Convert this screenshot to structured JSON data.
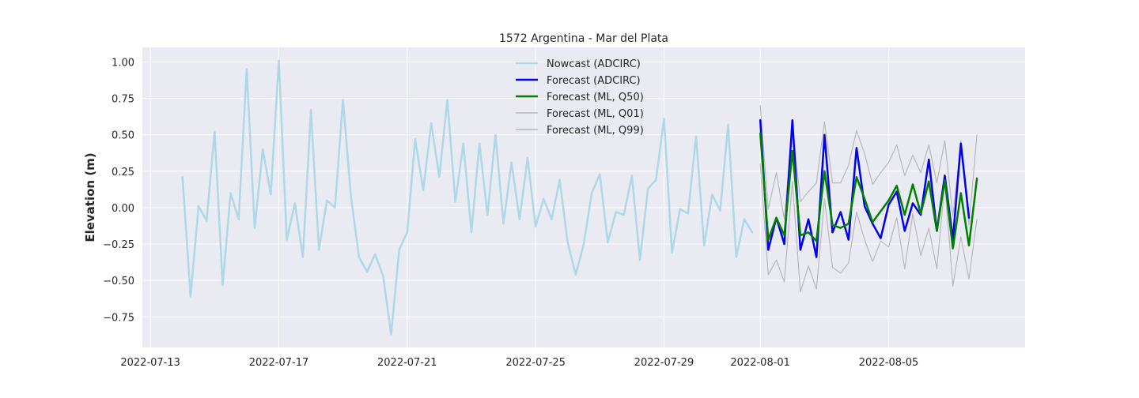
{
  "chart_data": {
    "type": "line",
    "title": "1572 Argentina - Mar del Plata",
    "xlabel": "",
    "ylabel": "Elevation (m)",
    "xlim": [
      "2022-07-12T18:00",
      "2022-08-09T06:00"
    ],
    "ylim": [
      -0.96,
      1.1
    ],
    "x_ticks": [
      "2022-07-13",
      "2022-07-17",
      "2022-07-21",
      "2022-07-25",
      "2022-07-29",
      "2022-08-01",
      "2022-08-05"
    ],
    "y_ticks": [
      -0.75,
      -0.5,
      -0.25,
      0.0,
      0.25,
      0.5,
      0.75,
      1.0
    ],
    "y_tick_labels": [
      "−0.75",
      "−0.50",
      "−0.25",
      "0.00",
      "0.25",
      "0.50",
      "0.75",
      "1.00"
    ],
    "grid": true,
    "legend_position": "top-center",
    "series": [
      {
        "name": "Nowcast (ADCIRC)",
        "color": "#add8e6",
        "width": 2.5,
        "x": [
          "2022-07-14T00:00",
          "2022-07-14T06:00",
          "2022-07-14T12:00",
          "2022-07-14T18:00",
          "2022-07-15T00:00",
          "2022-07-15T06:00",
          "2022-07-15T12:00",
          "2022-07-15T18:00",
          "2022-07-16T00:00",
          "2022-07-16T06:00",
          "2022-07-16T12:00",
          "2022-07-16T18:00",
          "2022-07-17T00:00",
          "2022-07-17T06:00",
          "2022-07-17T12:00",
          "2022-07-17T18:00",
          "2022-07-18T00:00",
          "2022-07-18T06:00",
          "2022-07-18T12:00",
          "2022-07-18T18:00",
          "2022-07-19T00:00",
          "2022-07-19T06:00",
          "2022-07-19T12:00",
          "2022-07-19T18:00",
          "2022-07-20T00:00",
          "2022-07-20T06:00",
          "2022-07-20T12:00",
          "2022-07-20T18:00",
          "2022-07-21T00:00",
          "2022-07-21T06:00",
          "2022-07-21T12:00",
          "2022-07-21T18:00",
          "2022-07-22T00:00",
          "2022-07-22T06:00",
          "2022-07-22T12:00",
          "2022-07-22T18:00",
          "2022-07-23T00:00",
          "2022-07-23T06:00",
          "2022-07-23T12:00",
          "2022-07-23T18:00",
          "2022-07-24T00:00",
          "2022-07-24T06:00",
          "2022-07-24T12:00",
          "2022-07-24T18:00",
          "2022-07-25T00:00",
          "2022-07-25T06:00",
          "2022-07-25T12:00",
          "2022-07-25T18:00",
          "2022-07-26T00:00",
          "2022-07-26T06:00",
          "2022-07-26T12:00",
          "2022-07-26T18:00",
          "2022-07-27T00:00",
          "2022-07-27T06:00",
          "2022-07-27T12:00",
          "2022-07-27T18:00",
          "2022-07-28T00:00",
          "2022-07-28T06:00",
          "2022-07-28T12:00",
          "2022-07-28T18:00",
          "2022-07-29T00:00",
          "2022-07-29T06:00",
          "2022-07-29T12:00",
          "2022-07-29T18:00",
          "2022-07-30T00:00",
          "2022-07-30T06:00",
          "2022-07-30T12:00",
          "2022-07-30T18:00",
          "2022-07-31T00:00",
          "2022-07-31T06:00",
          "2022-07-31T12:00",
          "2022-07-31T18:00"
        ],
        "y": [
          0.21,
          -0.61,
          0.01,
          -0.09,
          0.52,
          -0.53,
          0.1,
          -0.08,
          0.95,
          -0.14,
          0.4,
          0.09,
          1.01,
          -0.22,
          0.03,
          -0.34,
          0.67,
          -0.29,
          0.05,
          0.0,
          0.74,
          0.07,
          -0.34,
          -0.44,
          -0.32,
          -0.47,
          -0.87,
          -0.29,
          -0.17,
          0.47,
          0.12,
          0.58,
          0.21,
          0.74,
          0.04,
          0.44,
          -0.17,
          0.44,
          -0.05,
          0.5,
          -0.11,
          0.31,
          -0.08,
          0.34,
          -0.13,
          0.06,
          -0.08,
          0.19,
          -0.24,
          -0.46,
          -0.25,
          0.1,
          0.23,
          -0.24,
          -0.03,
          -0.05,
          0.22,
          -0.36,
          0.13,
          0.19,
          0.61,
          -0.31,
          -0.01,
          -0.04,
          0.49,
          -0.26,
          0.09,
          -0.02,
          0.57,
          -0.34,
          -0.08,
          -0.17
        ]
      },
      {
        "name": "Forecast (ADCIRC)",
        "color": "#0000ee",
        "width": 2.5,
        "x": [
          "2022-08-01T00:00",
          "2022-08-01T06:00",
          "2022-08-01T12:00",
          "2022-08-01T18:00",
          "2022-08-02T00:00",
          "2022-08-02T06:00",
          "2022-08-02T12:00",
          "2022-08-02T18:00",
          "2022-08-03T00:00",
          "2022-08-03T06:00",
          "2022-08-03T12:00",
          "2022-08-03T18:00",
          "2022-08-04T00:00",
          "2022-08-04T06:00",
          "2022-08-04T12:00",
          "2022-08-04T18:00",
          "2022-08-05T00:00",
          "2022-08-05T06:00",
          "2022-08-05T12:00",
          "2022-08-05T18:00",
          "2022-08-06T00:00",
          "2022-08-06T06:00",
          "2022-08-06T12:00",
          "2022-08-06T18:00",
          "2022-08-07T00:00",
          "2022-08-07T06:00",
          "2022-08-07T12:00",
          "2022-08-07T18:00"
        ],
        "y": [
          0.6,
          -0.29,
          -0.07,
          -0.25,
          0.6,
          -0.29,
          -0.08,
          -0.34,
          0.5,
          -0.17,
          -0.03,
          -0.22,
          0.41,
          0.01,
          -0.11,
          -0.21,
          0.02,
          0.11,
          -0.16,
          0.03,
          -0.05,
          0.33,
          -0.16,
          0.22,
          -0.22,
          0.44,
          -0.07,
          null
        ]
      },
      {
        "name": "Forecast (ML, Q50)",
        "color": "#008000",
        "width": 2.5,
        "x": [
          "2022-08-01T00:00",
          "2022-08-01T06:00",
          "2022-08-01T12:00",
          "2022-08-01T18:00",
          "2022-08-02T00:00",
          "2022-08-02T06:00",
          "2022-08-02T12:00",
          "2022-08-02T18:00",
          "2022-08-03T00:00",
          "2022-08-03T06:00",
          "2022-08-03T12:00",
          "2022-08-03T18:00",
          "2022-08-04T00:00",
          "2022-08-04T06:00",
          "2022-08-04T12:00",
          "2022-08-05T00:00",
          "2022-08-05T06:00",
          "2022-08-05T12:00",
          "2022-08-05T18:00",
          "2022-08-06T00:00",
          "2022-08-06T06:00",
          "2022-08-06T12:00",
          "2022-08-06T18:00",
          "2022-08-07T00:00",
          "2022-08-07T06:00",
          "2022-08-07T12:00",
          "2022-08-07T18:00",
          "2022-08-08T00:00"
        ],
        "y": [
          0.51,
          -0.22,
          -0.07,
          -0.19,
          0.39,
          -0.19,
          -0.17,
          -0.23,
          0.25,
          -0.12,
          -0.14,
          -0.11,
          0.21,
          0.06,
          -0.1,
          0.05,
          0.15,
          -0.05,
          0.16,
          -0.04,
          0.18,
          -0.16,
          0.19,
          -0.28,
          0.1,
          -0.26,
          0.2,
          null
        ]
      },
      {
        "name": "Forecast (ML, Q01)",
        "color": "#b8b8b8",
        "width": 1.2,
        "x": [
          "2022-08-01T00:00",
          "2022-08-01T06:00",
          "2022-08-01T12:00",
          "2022-08-01T18:00",
          "2022-08-02T00:00",
          "2022-08-02T06:00",
          "2022-08-02T12:00",
          "2022-08-02T18:00",
          "2022-08-03T00:00",
          "2022-08-03T06:00",
          "2022-08-03T12:00",
          "2022-08-03T18:00",
          "2022-08-04T00:00",
          "2022-08-04T06:00",
          "2022-08-04T12:00",
          "2022-08-04T18:00",
          "2022-08-05T00:00",
          "2022-08-05T06:00",
          "2022-08-05T12:00",
          "2022-08-05T18:00",
          "2022-08-06T00:00",
          "2022-08-06T06:00",
          "2022-08-06T12:00",
          "2022-08-06T18:00",
          "2022-08-07T00:00",
          "2022-08-07T06:00",
          "2022-08-07T12:00",
          "2022-08-07T18:00"
        ],
        "y": [
          0.3,
          -0.46,
          -0.36,
          -0.51,
          0.18,
          -0.58,
          -0.4,
          -0.56,
          0.06,
          -0.41,
          -0.45,
          -0.38,
          -0.03,
          -0.22,
          -0.37,
          -0.23,
          -0.27,
          -0.07,
          -0.42,
          -0.04,
          -0.33,
          -0.14,
          -0.42,
          0.17,
          -0.54,
          -0.2,
          -0.49,
          -0.08
        ]
      },
      {
        "name": "Forecast (ML, Q99)",
        "color": "#b8b8b8",
        "width": 1.2,
        "x": [
          "2022-08-01T00:00",
          "2022-08-01T06:00",
          "2022-08-01T12:00",
          "2022-08-01T18:00",
          "2022-08-02T00:00",
          "2022-08-02T06:00",
          "2022-08-02T12:00",
          "2022-08-02T18:00",
          "2022-08-03T00:00",
          "2022-08-03T06:00",
          "2022-08-03T12:00",
          "2022-08-03T18:00",
          "2022-08-04T00:00",
          "2022-08-04T06:00",
          "2022-08-04T12:00",
          "2022-08-04T18:00",
          "2022-08-05T00:00",
          "2022-08-05T06:00",
          "2022-08-05T12:00",
          "2022-08-05T18:00",
          "2022-08-06T00:00",
          "2022-08-06T06:00",
          "2022-08-06T12:00",
          "2022-08-06T18:00",
          "2022-08-07T00:00",
          "2022-08-07T06:00",
          "2022-08-07T12:00",
          "2022-08-07T18:00"
        ],
        "y": [
          0.7,
          -0.01,
          0.24,
          -0.08,
          0.58,
          0.04,
          0.11,
          0.17,
          0.59,
          0.17,
          0.17,
          0.29,
          0.53,
          0.37,
          0.16,
          0.24,
          0.31,
          0.43,
          0.22,
          0.36,
          0.24,
          0.43,
          0.17,
          0.46,
          -0.06,
          0.46,
          -0.12,
          0.5
        ]
      }
    ]
  }
}
